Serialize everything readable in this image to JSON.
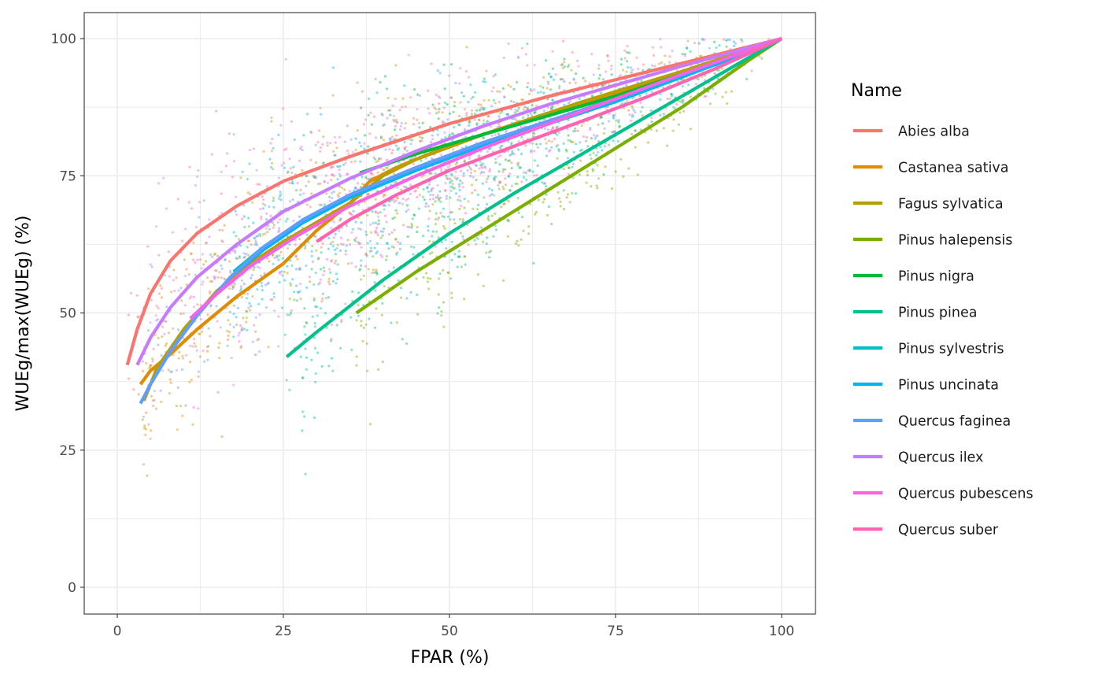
{
  "chart_data": {
    "type": "scatter",
    "xlabel": "FPAR (%)",
    "ylabel": "WUEg/max(WUEg) (%)",
    "xlim": [
      -10,
      110
    ],
    "ylim": [
      -5,
      105
    ],
    "x_ticks": [
      0,
      25,
      50,
      75,
      100
    ],
    "x_tick_labels": [
      "0",
      "25",
      "50",
      "75",
      "100"
    ],
    "y_ticks": [
      0,
      25,
      50,
      75,
      100
    ],
    "y_tick_labels": [
      "0",
      "25",
      "50",
      "75",
      "100"
    ],
    "grid": true,
    "legend": {
      "title": "Name",
      "placement": "right"
    },
    "overlay": "scatter points with fitted curves per series",
    "series": [
      {
        "name": "Abies alba",
        "color": "#F8766D",
        "x_min": 1.5,
        "fit": [
          [
            1.5,
            40.5
          ],
          [
            3,
            47
          ],
          [
            5,
            53.5
          ],
          [
            8,
            59.5
          ],
          [
            12,
            64.5
          ],
          [
            18,
            69.5
          ],
          [
            25,
            74
          ],
          [
            35,
            78.5
          ],
          [
            50,
            84.5
          ],
          [
            65,
            89.5
          ],
          [
            80,
            94
          ],
          [
            90,
            97
          ],
          [
            100,
            100
          ]
        ]
      },
      {
        "name": "Castanea sativa",
        "color": "#DE8C00",
        "x_min": 3.5,
        "fit": [
          [
            3.5,
            37
          ],
          [
            5,
            39.5
          ],
          [
            8,
            42.5
          ],
          [
            12,
            47
          ],
          [
            18,
            53
          ],
          [
            25,
            59
          ],
          [
            30,
            65
          ],
          [
            35,
            70
          ],
          [
            38,
            74
          ],
          [
            42,
            76.5
          ],
          [
            50,
            80.5
          ],
          [
            60,
            84.5
          ],
          [
            75,
            90
          ],
          [
            90,
            96
          ],
          [
            100,
            100
          ]
        ]
      },
      {
        "name": "Fagus sylvatica",
        "color": "#B79F00",
        "x_min": 4,
        "fit": [
          [
            4,
            34
          ],
          [
            6,
            40
          ],
          [
            10,
            47
          ],
          [
            15,
            54
          ],
          [
            20,
            59
          ],
          [
            25,
            63
          ],
          [
            30,
            66.5
          ],
          [
            35,
            70
          ],
          [
            40,
            75
          ],
          [
            45,
            78
          ],
          [
            55,
            82.5
          ],
          [
            70,
            88.5
          ],
          [
            85,
            94
          ],
          [
            100,
            100
          ]
        ]
      },
      {
        "name": "Pinus halepensis",
        "color": "#7CAE00",
        "x_min": 36,
        "fit": [
          [
            36,
            50
          ],
          [
            45,
            57.5
          ],
          [
            55,
            65
          ],
          [
            65,
            72.5
          ],
          [
            75,
            80
          ],
          [
            85,
            87.5
          ],
          [
            95,
            96
          ],
          [
            100,
            100
          ]
        ]
      },
      {
        "name": "Pinus nigra",
        "color": "#00BA38",
        "x_min": 36.5,
        "fit": [
          [
            36.5,
            75.5
          ],
          [
            45,
            79
          ],
          [
            55,
            82.5
          ],
          [
            65,
            86
          ],
          [
            75,
            89.5
          ],
          [
            85,
            93.5
          ],
          [
            95,
            97.5
          ],
          [
            100,
            100
          ]
        ]
      },
      {
        "name": "Pinus pinea",
        "color": "#00C08B",
        "x_min": 25.5,
        "fit": [
          [
            25.5,
            42
          ],
          [
            30,
            46.5
          ],
          [
            40,
            56
          ],
          [
            50,
            64.5
          ],
          [
            60,
            72
          ],
          [
            70,
            79
          ],
          [
            80,
            86
          ],
          [
            90,
            93
          ],
          [
            100,
            100
          ]
        ]
      },
      {
        "name": "Pinus sylvestris",
        "color": "#00BFC4",
        "x_min": 17.5,
        "fit": [
          [
            17.5,
            57.5
          ],
          [
            22,
            62
          ],
          [
            28,
            67
          ],
          [
            35,
            71.5
          ],
          [
            45,
            76.5
          ],
          [
            55,
            81
          ],
          [
            65,
            85
          ],
          [
            75,
            89
          ],
          [
            85,
            93.5
          ],
          [
            95,
            97.5
          ],
          [
            100,
            100
          ]
        ]
      },
      {
        "name": "Pinus uncinata",
        "color": "#00B4F0",
        "x_min": 17.5,
        "fit": [
          [
            17.5,
            57
          ],
          [
            22,
            61.5
          ],
          [
            28,
            66.5
          ],
          [
            35,
            71
          ],
          [
            45,
            76
          ],
          [
            55,
            80.5
          ],
          [
            65,
            84.5
          ],
          [
            75,
            88.5
          ],
          [
            85,
            93
          ],
          [
            95,
            97.5
          ],
          [
            100,
            100
          ]
        ]
      },
      {
        "name": "Quercus faginea",
        "color": "#619CFF",
        "x_min": 3.5,
        "fit": [
          [
            3.5,
            33.5
          ],
          [
            5,
            37
          ],
          [
            8,
            43
          ],
          [
            12,
            49.5
          ],
          [
            17,
            56.5
          ],
          [
            22,
            62
          ],
          [
            28,
            67
          ],
          [
            35,
            71.5
          ],
          [
            45,
            76.5
          ],
          [
            55,
            81
          ],
          [
            65,
            85
          ],
          [
            75,
            89
          ],
          [
            85,
            93.5
          ],
          [
            100,
            100
          ]
        ]
      },
      {
        "name": "Quercus ilex",
        "color": "#C77CFF",
        "x_min": 3,
        "fit": [
          [
            3,
            40.5
          ],
          [
            5,
            45.5
          ],
          [
            8,
            51
          ],
          [
            12,
            56.5
          ],
          [
            18,
            62.5
          ],
          [
            25,
            68.5
          ],
          [
            35,
            74.5
          ],
          [
            45,
            79.5
          ],
          [
            55,
            84
          ],
          [
            65,
            88
          ],
          [
            75,
            91.5
          ],
          [
            85,
            95
          ],
          [
            100,
            100
          ]
        ]
      },
      {
        "name": "Quercus pubescens",
        "color": "#F564E3",
        "x_min": 11,
        "fit": [
          [
            11,
            49
          ],
          [
            15,
            53.5
          ],
          [
            20,
            58.5
          ],
          [
            27,
            64
          ],
          [
            35,
            69.5
          ],
          [
            45,
            75
          ],
          [
            55,
            80
          ],
          [
            65,
            84.5
          ],
          [
            75,
            89
          ],
          [
            85,
            93.5
          ],
          [
            100,
            100
          ]
        ]
      },
      {
        "name": "Quercus suber",
        "color": "#FF64B0",
        "x_min": 30,
        "fit": [
          [
            30,
            63
          ],
          [
            35,
            67
          ],
          [
            42,
            71.5
          ],
          [
            50,
            76
          ],
          [
            60,
            80.5
          ],
          [
            70,
            85
          ],
          [
            80,
            89.5
          ],
          [
            90,
            94.5
          ],
          [
            100,
            100
          ]
        ]
      }
    ]
  }
}
